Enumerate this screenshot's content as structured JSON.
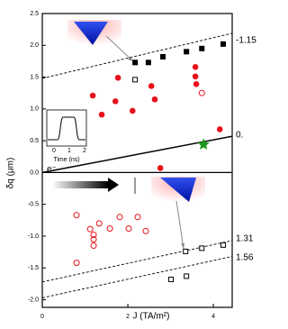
{
  "chart_data": {
    "type": "scatter",
    "ylabel": "δq (μm)",
    "xlabel": "J (TA/m²)",
    "xlim": [
      0,
      4.44
    ],
    "ylim": [
      -2.12,
      2.5
    ],
    "xticks": [
      0,
      2,
      4
    ],
    "yticks": [
      {
        "value": 2.5,
        "label": "2.5"
      },
      {
        "value": 2,
        "label": "2.0"
      },
      1.5,
      {
        "value": 1,
        "label": "1.0"
      },
      0.5,
      {
        "value": 0,
        "label": "0.0"
      },
      -0.5,
      {
        "value": -1,
        "label": "-1.0"
      },
      -1.5,
      {
        "value": -2,
        "label": "-2.0"
      }
    ],
    "series": [
      {
        "marker": "square-filled",
        "color": "#000000",
        "x": [
          2.17,
          2.48,
          2.82,
          3.37,
          3.73,
          4.23
        ],
        "values": [
          1.73,
          1.73,
          1.82,
          1.9,
          1.95,
          2.02
        ]
      },
      {
        "marker": "square-open",
        "color": "#000000",
        "x": [
          2.17,
          3.35,
          3.73,
          4.23,
          3.01,
          3.37
        ],
        "values": [
          1.46,
          -1.24,
          -1.19,
          -1.14,
          -1.68,
          -1.63
        ]
      },
      {
        "marker": "circle-filled",
        "color": "#e8101a",
        "x": [
          1.18,
          1.39,
          1.77,
          1.71,
          2.11,
          2.55,
          2.63,
          2.76,
          3.58,
          3.58,
          3.6,
          4.15
        ],
        "values": [
          1.21,
          0.91,
          1.49,
          1.12,
          0.97,
          1.36,
          1.15,
          0.07,
          1.66,
          1.51,
          1.39,
          0.68
        ]
      },
      {
        "marker": "circle-open",
        "color": "#e8101a",
        "x": [
          3.73,
          0.8,
          1.12,
          1.2,
          1.2,
          1.2,
          1.33,
          1.58,
          1.81,
          2.02,
          2.23,
          2.42,
          0.8
        ],
        "values": [
          1.25,
          -0.67,
          -0.89,
          -0.98,
          -1.05,
          -1.15,
          -0.8,
          -0.88,
          -0.7,
          -0.88,
          -0.7,
          -0.92,
          -1.42
        ]
      },
      {
        "marker": "star",
        "color": "#1a9a1a",
        "x": [
          3.77
        ],
        "values": [
          0.44
        ]
      }
    ],
    "lines": [
      {
        "style": "dashed",
        "x": [
          0,
          4.44
        ],
        "values": [
          1.48,
          2.19
        ]
      },
      {
        "style": "solid",
        "x": [
          0,
          4.44
        ],
        "values": [
          0,
          0.57
        ]
      },
      {
        "style": "dashed",
        "x": [
          0,
          4.44
        ],
        "values": [
          -1.72,
          -1.07
        ]
      },
      {
        "style": "dashed",
        "x": [
          0,
          4.44
        ],
        "values": [
          -1.97,
          -1.32
        ]
      }
    ],
    "annotations": [
      "-1.15",
      "0.",
      "1.31",
      "1.56",
      "e⁻"
    ],
    "inset": {
      "xlabel": "Time (ns)",
      "xticks": [
        "0",
        "1",
        "2"
      ]
    }
  }
}
